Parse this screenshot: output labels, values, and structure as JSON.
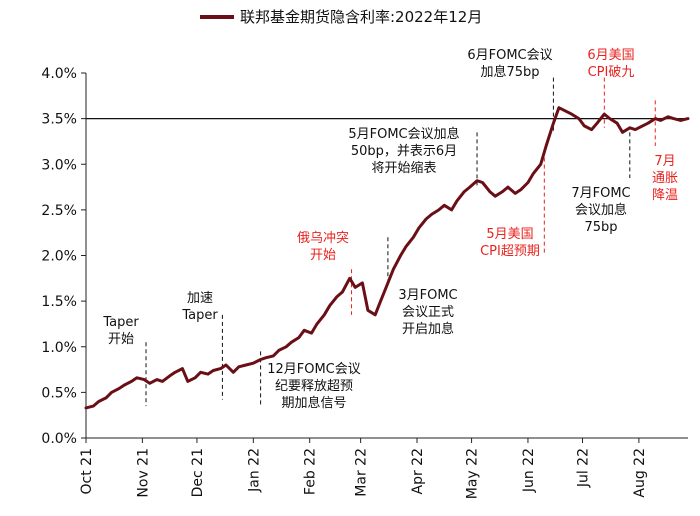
{
  "chart_data": {
    "type": "line",
    "title": "联邦基金期货隐含利率:2022年12月",
    "colors": {
      "line": "#6b0f16",
      "black_annotation": "#111111",
      "red_annotation": "#e8231f"
    },
    "ylim": [
      0.0,
      4.0
    ],
    "yticks": [
      "0.0%",
      "0.5%",
      "1.0%",
      "1.5%",
      "2.0%",
      "2.5%",
      "3.0%",
      "3.5%",
      "4.0%"
    ],
    "x_range": [
      "2021-10-01",
      "2022-08-28"
    ],
    "xticks": [
      {
        "label": "Oct 21",
        "date": "2021-10-01"
      },
      {
        "label": "Nov 21",
        "date": "2021-11-01"
      },
      {
        "label": "Dec 21",
        "date": "2021-12-01"
      },
      {
        "label": "Jan 22",
        "date": "2022-01-01"
      },
      {
        "label": "Feb 22",
        "date": "2022-02-01"
      },
      {
        "label": "Mar 22",
        "date": "2022-03-01"
      },
      {
        "label": "Apr 22",
        "date": "2022-04-01"
      },
      {
        "label": "May 22",
        "date": "2022-05-01"
      },
      {
        "label": "Jun 22",
        "date": "2022-06-01"
      },
      {
        "label": "Jul 22",
        "date": "2022-07-01"
      },
      {
        "label": "Aug 22",
        "date": "2022-08-01"
      }
    ],
    "reference_line": {
      "y": 3.5
    },
    "series": [
      {
        "points": [
          [
            "2021-10-01",
            0.33
          ],
          [
            "2021-10-05",
            0.35
          ],
          [
            "2021-10-08",
            0.4
          ],
          [
            "2021-10-12",
            0.44
          ],
          [
            "2021-10-15",
            0.5
          ],
          [
            "2021-10-19",
            0.54
          ],
          [
            "2021-10-22",
            0.58
          ],
          [
            "2021-10-26",
            0.62
          ],
          [
            "2021-10-29",
            0.66
          ],
          [
            "2021-11-02",
            0.64
          ],
          [
            "2021-11-05",
            0.6
          ],
          [
            "2021-11-09",
            0.64
          ],
          [
            "2021-11-12",
            0.62
          ],
          [
            "2021-11-16",
            0.68
          ],
          [
            "2021-11-19",
            0.72
          ],
          [
            "2021-11-23",
            0.76
          ],
          [
            "2021-11-26",
            0.62
          ],
          [
            "2021-11-30",
            0.66
          ],
          [
            "2021-12-03",
            0.72
          ],
          [
            "2021-12-07",
            0.7
          ],
          [
            "2021-12-10",
            0.74
          ],
          [
            "2021-12-14",
            0.76
          ],
          [
            "2021-12-17",
            0.8
          ],
          [
            "2021-12-21",
            0.72
          ],
          [
            "2021-12-24",
            0.78
          ],
          [
            "2021-12-28",
            0.8
          ],
          [
            "2022-01-01",
            0.82
          ],
          [
            "2022-01-05",
            0.86
          ],
          [
            "2022-01-08",
            0.88
          ],
          [
            "2022-01-12",
            0.9
          ],
          [
            "2022-01-15",
            0.96
          ],
          [
            "2022-01-19",
            1.0
          ],
          [
            "2022-01-22",
            1.05
          ],
          [
            "2022-01-26",
            1.1
          ],
          [
            "2022-01-29",
            1.18
          ],
          [
            "2022-02-02",
            1.15
          ],
          [
            "2022-02-05",
            1.25
          ],
          [
            "2022-02-09",
            1.35
          ],
          [
            "2022-02-12",
            1.45
          ],
          [
            "2022-02-16",
            1.55
          ],
          [
            "2022-02-19",
            1.6
          ],
          [
            "2022-02-23",
            1.75
          ],
          [
            "2022-02-26",
            1.65
          ],
          [
            "2022-03-02",
            1.7
          ],
          [
            "2022-03-05",
            1.4
          ],
          [
            "2022-03-09",
            1.35
          ],
          [
            "2022-03-12",
            1.5
          ],
          [
            "2022-03-16",
            1.7
          ],
          [
            "2022-03-19",
            1.85
          ],
          [
            "2022-03-23",
            2.0
          ],
          [
            "2022-03-26",
            2.1
          ],
          [
            "2022-03-30",
            2.2
          ],
          [
            "2022-04-02",
            2.3
          ],
          [
            "2022-04-06",
            2.4
          ],
          [
            "2022-04-09",
            2.45
          ],
          [
            "2022-04-13",
            2.5
          ],
          [
            "2022-04-16",
            2.55
          ],
          [
            "2022-04-20",
            2.5
          ],
          [
            "2022-04-23",
            2.6
          ],
          [
            "2022-04-27",
            2.7
          ],
          [
            "2022-04-30",
            2.75
          ],
          [
            "2022-05-04",
            2.82
          ],
          [
            "2022-05-07",
            2.8
          ],
          [
            "2022-05-11",
            2.7
          ],
          [
            "2022-05-14",
            2.65
          ],
          [
            "2022-05-18",
            2.7
          ],
          [
            "2022-05-21",
            2.75
          ],
          [
            "2022-05-25",
            2.68
          ],
          [
            "2022-05-28",
            2.72
          ],
          [
            "2022-06-01",
            2.8
          ],
          [
            "2022-06-04",
            2.9
          ],
          [
            "2022-06-08",
            3.0
          ],
          [
            "2022-06-11",
            3.2
          ],
          [
            "2022-06-15",
            3.45
          ],
          [
            "2022-06-18",
            3.62
          ],
          [
            "2022-06-22",
            3.58
          ],
          [
            "2022-06-25",
            3.55
          ],
          [
            "2022-06-29",
            3.5
          ],
          [
            "2022-07-02",
            3.42
          ],
          [
            "2022-07-06",
            3.38
          ],
          [
            "2022-07-09",
            3.45
          ],
          [
            "2022-07-13",
            3.55
          ],
          [
            "2022-07-16",
            3.5
          ],
          [
            "2022-07-20",
            3.45
          ],
          [
            "2022-07-23",
            3.35
          ],
          [
            "2022-07-27",
            3.4
          ],
          [
            "2022-07-30",
            3.38
          ],
          [
            "2022-08-03",
            3.42
          ],
          [
            "2022-08-06",
            3.45
          ],
          [
            "2022-08-10",
            3.5
          ],
          [
            "2022-08-13",
            3.48
          ],
          [
            "2022-08-17",
            3.52
          ],
          [
            "2022-08-20",
            3.5
          ],
          [
            "2022-08-24",
            3.48
          ],
          [
            "2022-08-28",
            3.5
          ]
        ]
      }
    ],
    "annotations": [
      {
        "text": [
          "Taper",
          "开始"
        ],
        "color": "black",
        "date": "2021-11-03",
        "y_top": 1.05,
        "y_bottom": 0.35
      },
      {
        "text": [
          "加速",
          "Taper"
        ],
        "color": "black",
        "date": "2021-12-15",
        "y_top": 1.35,
        "y_bottom": 0.42
      },
      {
        "text": [
          "12月FOMC会议",
          "纪要释放超预",
          "期加息信号"
        ],
        "color": "black",
        "date": "2022-01-05",
        "y_top": 0.95,
        "y_bottom": 0.35
      },
      {
        "text": [
          "俄乌冲突",
          "开始"
        ],
        "color": "red",
        "date": "2022-02-24",
        "y_top": 1.85,
        "y_bottom": 1.35
      },
      {
        "text": [
          "3月FOMC",
          "会议正式",
          "开启加息"
        ],
        "color": "black",
        "date": "2022-03-16",
        "y_top": 2.2,
        "y_bottom": 1.72
      },
      {
        "text": [
          "5月FOMC会议加息",
          "50bp，并表示6月",
          "将开始缩表"
        ],
        "color": "black",
        "date": "2022-05-04",
        "y_top": 3.35,
        "y_bottom": 2.75
      },
      {
        "text": [
          "5月美国",
          "CPI超预期"
        ],
        "color": "red",
        "date": "2022-06-10",
        "y_top": 3.15,
        "y_bottom": 2.0
      },
      {
        "text": [
          "6月FOMC会议",
          "加息75bp"
        ],
        "color": "black",
        "date": "2022-06-15",
        "y_top": 3.95,
        "y_bottom": 3.35
      },
      {
        "text": [
          "6月美国",
          "CPI破九"
        ],
        "color": "red",
        "date": "2022-07-13",
        "y_top": 3.95,
        "y_bottom": 3.4
      },
      {
        "text": [
          "7月FOMC",
          "会议加息",
          "75bp"
        ],
        "color": "black",
        "date": "2022-07-27",
        "y_top": 3.35,
        "y_bottom": 2.85
      },
      {
        "text": [
          "7月",
          "通胀",
          "降温"
        ],
        "color": "red",
        "date": "2022-08-10",
        "y_top": 3.7,
        "y_bottom": 3.2
      }
    ]
  }
}
